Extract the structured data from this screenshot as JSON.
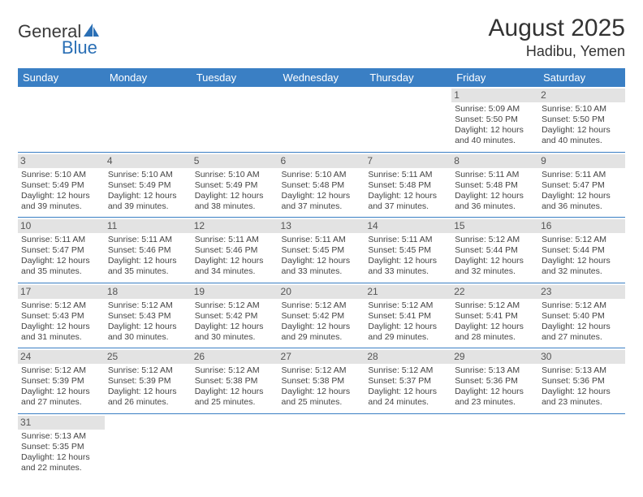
{
  "logo": {
    "text1": "General",
    "text2": "Blue"
  },
  "title": "August 2025",
  "location": "Hadibu, Yemen",
  "colors": {
    "header_bg": "#3a7fc4",
    "header_text": "#ffffff",
    "daynum_bg": "#e3e3e3",
    "border": "#3a7fc4",
    "logo_blue": "#2a6fb5"
  },
  "headers": [
    "Sunday",
    "Monday",
    "Tuesday",
    "Wednesday",
    "Thursday",
    "Friday",
    "Saturday"
  ],
  "weeks": [
    [
      {
        "day": "",
        "sunrise": "",
        "sunset": "",
        "daylight1": "",
        "daylight2": "",
        "empty": true
      },
      {
        "day": "",
        "sunrise": "",
        "sunset": "",
        "daylight1": "",
        "daylight2": "",
        "empty": true
      },
      {
        "day": "",
        "sunrise": "",
        "sunset": "",
        "daylight1": "",
        "daylight2": "",
        "empty": true
      },
      {
        "day": "",
        "sunrise": "",
        "sunset": "",
        "daylight1": "",
        "daylight2": "",
        "empty": true
      },
      {
        "day": "",
        "sunrise": "",
        "sunset": "",
        "daylight1": "",
        "daylight2": "",
        "empty": true
      },
      {
        "day": "1",
        "sunrise": "Sunrise: 5:09 AM",
        "sunset": "Sunset: 5:50 PM",
        "daylight1": "Daylight: 12 hours",
        "daylight2": "and 40 minutes."
      },
      {
        "day": "2",
        "sunrise": "Sunrise: 5:10 AM",
        "sunset": "Sunset: 5:50 PM",
        "daylight1": "Daylight: 12 hours",
        "daylight2": "and 40 minutes."
      }
    ],
    [
      {
        "day": "3",
        "sunrise": "Sunrise: 5:10 AM",
        "sunset": "Sunset: 5:49 PM",
        "daylight1": "Daylight: 12 hours",
        "daylight2": "and 39 minutes."
      },
      {
        "day": "4",
        "sunrise": "Sunrise: 5:10 AM",
        "sunset": "Sunset: 5:49 PM",
        "daylight1": "Daylight: 12 hours",
        "daylight2": "and 39 minutes."
      },
      {
        "day": "5",
        "sunrise": "Sunrise: 5:10 AM",
        "sunset": "Sunset: 5:49 PM",
        "daylight1": "Daylight: 12 hours",
        "daylight2": "and 38 minutes."
      },
      {
        "day": "6",
        "sunrise": "Sunrise: 5:10 AM",
        "sunset": "Sunset: 5:48 PM",
        "daylight1": "Daylight: 12 hours",
        "daylight2": "and 37 minutes."
      },
      {
        "day": "7",
        "sunrise": "Sunrise: 5:11 AM",
        "sunset": "Sunset: 5:48 PM",
        "daylight1": "Daylight: 12 hours",
        "daylight2": "and 37 minutes."
      },
      {
        "day": "8",
        "sunrise": "Sunrise: 5:11 AM",
        "sunset": "Sunset: 5:48 PM",
        "daylight1": "Daylight: 12 hours",
        "daylight2": "and 36 minutes."
      },
      {
        "day": "9",
        "sunrise": "Sunrise: 5:11 AM",
        "sunset": "Sunset: 5:47 PM",
        "daylight1": "Daylight: 12 hours",
        "daylight2": "and 36 minutes."
      }
    ],
    [
      {
        "day": "10",
        "sunrise": "Sunrise: 5:11 AM",
        "sunset": "Sunset: 5:47 PM",
        "daylight1": "Daylight: 12 hours",
        "daylight2": "and 35 minutes."
      },
      {
        "day": "11",
        "sunrise": "Sunrise: 5:11 AM",
        "sunset": "Sunset: 5:46 PM",
        "daylight1": "Daylight: 12 hours",
        "daylight2": "and 35 minutes."
      },
      {
        "day": "12",
        "sunrise": "Sunrise: 5:11 AM",
        "sunset": "Sunset: 5:46 PM",
        "daylight1": "Daylight: 12 hours",
        "daylight2": "and 34 minutes."
      },
      {
        "day": "13",
        "sunrise": "Sunrise: 5:11 AM",
        "sunset": "Sunset: 5:45 PM",
        "daylight1": "Daylight: 12 hours",
        "daylight2": "and 33 minutes."
      },
      {
        "day": "14",
        "sunrise": "Sunrise: 5:11 AM",
        "sunset": "Sunset: 5:45 PM",
        "daylight1": "Daylight: 12 hours",
        "daylight2": "and 33 minutes."
      },
      {
        "day": "15",
        "sunrise": "Sunrise: 5:12 AM",
        "sunset": "Sunset: 5:44 PM",
        "daylight1": "Daylight: 12 hours",
        "daylight2": "and 32 minutes."
      },
      {
        "day": "16",
        "sunrise": "Sunrise: 5:12 AM",
        "sunset": "Sunset: 5:44 PM",
        "daylight1": "Daylight: 12 hours",
        "daylight2": "and 32 minutes."
      }
    ],
    [
      {
        "day": "17",
        "sunrise": "Sunrise: 5:12 AM",
        "sunset": "Sunset: 5:43 PM",
        "daylight1": "Daylight: 12 hours",
        "daylight2": "and 31 minutes."
      },
      {
        "day": "18",
        "sunrise": "Sunrise: 5:12 AM",
        "sunset": "Sunset: 5:43 PM",
        "daylight1": "Daylight: 12 hours",
        "daylight2": "and 30 minutes."
      },
      {
        "day": "19",
        "sunrise": "Sunrise: 5:12 AM",
        "sunset": "Sunset: 5:42 PM",
        "daylight1": "Daylight: 12 hours",
        "daylight2": "and 30 minutes."
      },
      {
        "day": "20",
        "sunrise": "Sunrise: 5:12 AM",
        "sunset": "Sunset: 5:42 PM",
        "daylight1": "Daylight: 12 hours",
        "daylight2": "and 29 minutes."
      },
      {
        "day": "21",
        "sunrise": "Sunrise: 5:12 AM",
        "sunset": "Sunset: 5:41 PM",
        "daylight1": "Daylight: 12 hours",
        "daylight2": "and 29 minutes."
      },
      {
        "day": "22",
        "sunrise": "Sunrise: 5:12 AM",
        "sunset": "Sunset: 5:41 PM",
        "daylight1": "Daylight: 12 hours",
        "daylight2": "and 28 minutes."
      },
      {
        "day": "23",
        "sunrise": "Sunrise: 5:12 AM",
        "sunset": "Sunset: 5:40 PM",
        "daylight1": "Daylight: 12 hours",
        "daylight2": "and 27 minutes."
      }
    ],
    [
      {
        "day": "24",
        "sunrise": "Sunrise: 5:12 AM",
        "sunset": "Sunset: 5:39 PM",
        "daylight1": "Daylight: 12 hours",
        "daylight2": "and 27 minutes."
      },
      {
        "day": "25",
        "sunrise": "Sunrise: 5:12 AM",
        "sunset": "Sunset: 5:39 PM",
        "daylight1": "Daylight: 12 hours",
        "daylight2": "and 26 minutes."
      },
      {
        "day": "26",
        "sunrise": "Sunrise: 5:12 AM",
        "sunset": "Sunset: 5:38 PM",
        "daylight1": "Daylight: 12 hours",
        "daylight2": "and 25 minutes."
      },
      {
        "day": "27",
        "sunrise": "Sunrise: 5:12 AM",
        "sunset": "Sunset: 5:38 PM",
        "daylight1": "Daylight: 12 hours",
        "daylight2": "and 25 minutes."
      },
      {
        "day": "28",
        "sunrise": "Sunrise: 5:12 AM",
        "sunset": "Sunset: 5:37 PM",
        "daylight1": "Daylight: 12 hours",
        "daylight2": "and 24 minutes."
      },
      {
        "day": "29",
        "sunrise": "Sunrise: 5:13 AM",
        "sunset": "Sunset: 5:36 PM",
        "daylight1": "Daylight: 12 hours",
        "daylight2": "and 23 minutes."
      },
      {
        "day": "30",
        "sunrise": "Sunrise: 5:13 AM",
        "sunset": "Sunset: 5:36 PM",
        "daylight1": "Daylight: 12 hours",
        "daylight2": "and 23 minutes."
      }
    ],
    [
      {
        "day": "31",
        "sunrise": "Sunrise: 5:13 AM",
        "sunset": "Sunset: 5:35 PM",
        "daylight1": "Daylight: 12 hours",
        "daylight2": "and 22 minutes."
      },
      {
        "day": "",
        "sunrise": "",
        "sunset": "",
        "daylight1": "",
        "daylight2": "",
        "empty": true
      },
      {
        "day": "",
        "sunrise": "",
        "sunset": "",
        "daylight1": "",
        "daylight2": "",
        "empty": true
      },
      {
        "day": "",
        "sunrise": "",
        "sunset": "",
        "daylight1": "",
        "daylight2": "",
        "empty": true
      },
      {
        "day": "",
        "sunrise": "",
        "sunset": "",
        "daylight1": "",
        "daylight2": "",
        "empty": true
      },
      {
        "day": "",
        "sunrise": "",
        "sunset": "",
        "daylight1": "",
        "daylight2": "",
        "empty": true
      },
      {
        "day": "",
        "sunrise": "",
        "sunset": "",
        "daylight1": "",
        "daylight2": "",
        "empty": true
      }
    ]
  ]
}
